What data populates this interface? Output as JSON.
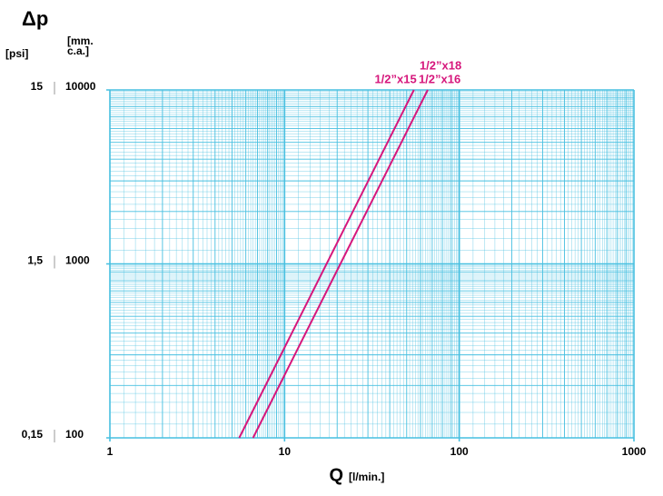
{
  "chart_data": {
    "type": "line",
    "y_label": "Δp",
    "y_unit_label": "[mm.\nc.a.]",
    "y2_unit_label": "[psi]",
    "x_label": "Q",
    "x_unit_label": "[l/min.]",
    "log_x": true,
    "log_y": true,
    "grid": true,
    "grid_color": "#46bfe0",
    "xlim": [
      1,
      1000
    ],
    "xticks": [
      1,
      10,
      100,
      1000
    ],
    "ylim": [
      100,
      10000
    ],
    "yticks": [
      100,
      1000,
      10000
    ],
    "y2lim": [
      0.15,
      15
    ],
    "y2ticks": [
      {
        "value": 0.15,
        "label": "0,15"
      },
      {
        "value": 1.5,
        "label": "1,5"
      },
      15
    ],
    "series": [
      {
        "name": "1/2”x15",
        "color": "#d6177c",
        "x": [
          5.5,
          55
        ],
        "values": [
          100,
          10000
        ]
      },
      {
        "name": "1/2”x16",
        "color": "#d6177c",
        "x": [
          6.6,
          66
        ],
        "values": [
          100,
          10000
        ]
      }
    ],
    "annotation": "1/2”x18"
  }
}
